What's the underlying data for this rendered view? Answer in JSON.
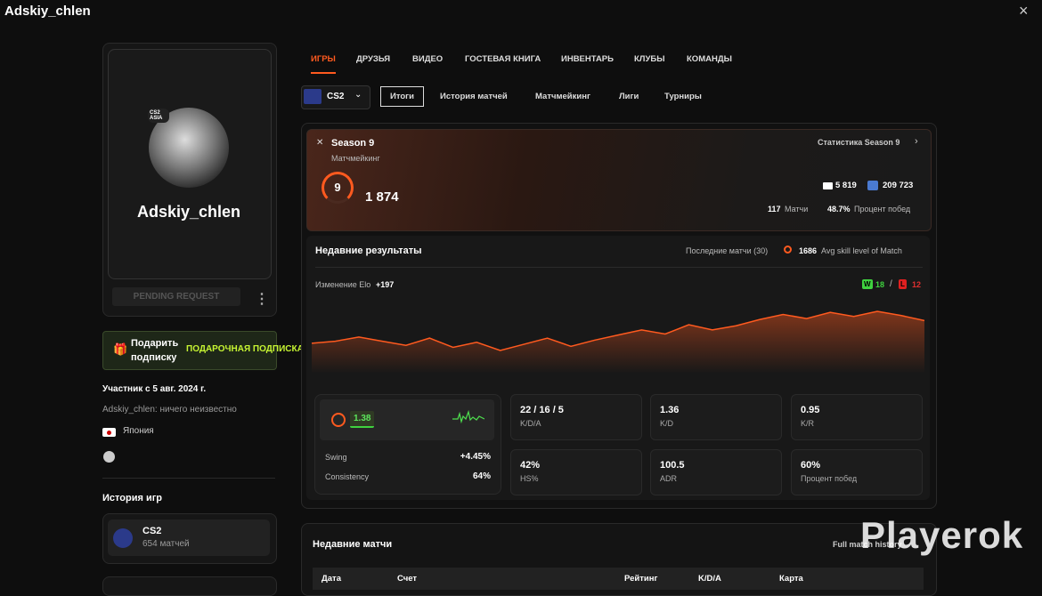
{
  "header": {
    "title": "Adskiy_chlen"
  },
  "profile": {
    "avatar_badge": "CS2 ASIA",
    "name": "Adskiy_chlen",
    "button": "PENDING REQUEST"
  },
  "gift": {
    "label": "Подарить подписку",
    "action": "ПОДАРОЧНАЯ ПОДПИСКА"
  },
  "info": {
    "member_since": "Участник с 5 авг. 2024 г.",
    "bio": "Adskiy_chlen: ничего неизвестно",
    "country": "Япония"
  },
  "game_history": {
    "title": "История игр",
    "game": "CS2",
    "matches": "654 матчей"
  },
  "tabs": [
    "ИГРЫ",
    "ДРУЗЬЯ",
    "ВИДЕО",
    "ГОСТЕВАЯ КНИГА",
    "ИНВЕНТАРЬ",
    "КЛУБЫ",
    "КОМАНДЫ"
  ],
  "game_select": "CS2",
  "subtabs": [
    "Итоги",
    "История матчей",
    "Матчмейкинг",
    "Лиги",
    "Турниры"
  ],
  "season": {
    "title": "Season 9",
    "subtitle": "Матчмейкинг",
    "link": "Статистика Season 9",
    "level": 9,
    "elo": "1 874",
    "rank_country": "5 819",
    "rank_region": "209 723",
    "matches": 117,
    "matches_label": "Матчи",
    "win_rate": "48.7%",
    "win_rate_label": "Процент побед"
  },
  "recent": {
    "title": "Недавние результаты",
    "last_matches": "Последние матчи (30)",
    "avg_skill": 1686,
    "avg_skill_label": "Avg skill level of Match",
    "elo_change_label": "Изменение Elo",
    "elo_change": "+197",
    "wins_label": "W",
    "wins": 18,
    "losses_label": "L",
    "losses": 12,
    "elo_trend": [
      15,
      17,
      21,
      17,
      13,
      20,
      11,
      16,
      8,
      14,
      20,
      12,
      18,
      23,
      28,
      24,
      33,
      28,
      32,
      38,
      43,
      39,
      45,
      41,
      46,
      42,
      37
    ]
  },
  "stats": {
    "rating": "1.38",
    "swing_label": "Swing",
    "swing": "+4.45%",
    "consistency_label": "Consistency",
    "consistency": "64%",
    "tiles": [
      {
        "value": "22 / 16 / 5",
        "label": "K/D/A"
      },
      {
        "value": "1.36",
        "label": "K/D"
      },
      {
        "value": "0.95",
        "label": "K/R"
      },
      {
        "value": "42%",
        "label": "HS%"
      },
      {
        "value": "100.5",
        "label": "ADR"
      },
      {
        "value": "60%",
        "label": "Процент побед"
      }
    ]
  },
  "matches": {
    "title": "Недавние матчи",
    "link": "Full match history",
    "columns": [
      "Дата",
      "Счет",
      "Рейтинг",
      "K/D/A",
      "Карта"
    ]
  },
  "watermark": "Playerok"
}
